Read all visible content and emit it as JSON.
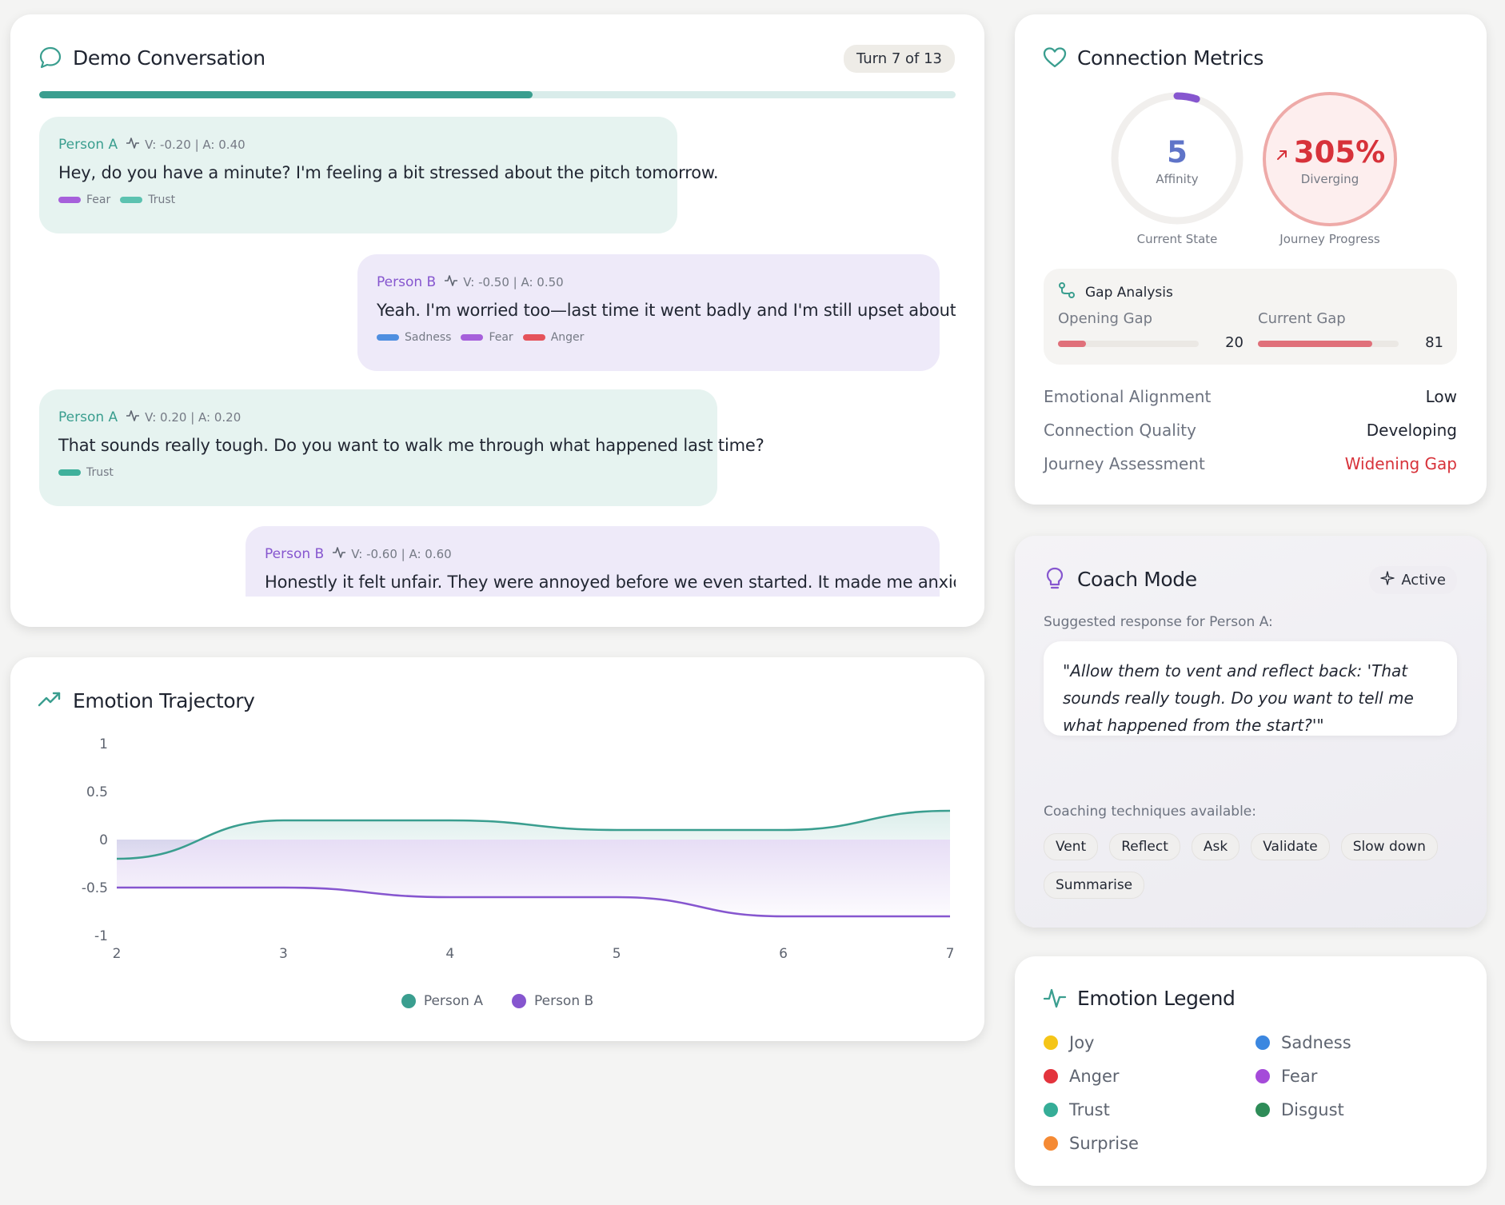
{
  "conversation": {
    "title": "Demo Conversation",
    "turn_label": "Turn 7 of 13",
    "progress": 0.538,
    "messages": [
      {
        "speaker": "Person A",
        "va": "V: -0.20 | A: 0.40",
        "text": "Hey, do you have a minute? I'm feeling a bit stressed about the pitch tomorrow.",
        "tags": [
          {
            "label": "Fear",
            "color": "#a660db"
          },
          {
            "label": "Trust",
            "color": "#5cc2b0"
          }
        ]
      },
      {
        "speaker": "Person B",
        "va": "V: -0.50 | A: 0.50",
        "text": "Yeah. I'm worried too—last time it went badly and I'm still upset about it.",
        "tags": [
          {
            "label": "Sadness",
            "color": "#4f8fe0"
          },
          {
            "label": "Fear",
            "color": "#a660db"
          },
          {
            "label": "Anger",
            "color": "#e5535b"
          }
        ]
      },
      {
        "speaker": "Person A",
        "va": "V: 0.20 | A: 0.20",
        "text": "That sounds really tough. Do you want to walk me through what happened last time?",
        "tags": [
          {
            "label": "Trust",
            "color": "#3fb09b"
          }
        ]
      },
      {
        "speaker": "Person B",
        "va": "V: -0.60 | A: 0.60",
        "text": "Honestly it felt unfair. They were annoyed before we even started. It made me anxious.",
        "tags": []
      }
    ]
  },
  "trajectory": {
    "title": "Emotion Trajectory",
    "legend": [
      "Person A",
      "Person B"
    ]
  },
  "chart_data": {
    "type": "line",
    "x": [
      2,
      3,
      4,
      5,
      6,
      7
    ],
    "series": [
      {
        "name": "Person A",
        "color": "#3a9e8f",
        "values": [
          -0.2,
          0.2,
          0.2,
          0.1,
          0.1,
          0.3
        ]
      },
      {
        "name": "Person B",
        "color": "#8656cf",
        "values": [
          -0.5,
          -0.5,
          -0.6,
          -0.6,
          -0.8,
          -0.8
        ]
      }
    ],
    "yticks": [
      "1",
      "0.5",
      "0",
      "-0.5",
      "-1"
    ],
    "xticks": [
      "2",
      "3",
      "4",
      "5",
      "6",
      "7"
    ],
    "ylim": [
      -1,
      1
    ],
    "xlim": [
      2,
      7
    ],
    "legend_position": "bottom-center"
  },
  "metrics": {
    "title": "Connection Metrics",
    "affinity_value": "5",
    "affinity_label": "Affinity",
    "affinity_caption": "Current State",
    "affinity_fraction": 0.05,
    "progress_value": "305%",
    "progress_label": "Diverging",
    "progress_caption": "Journey Progress",
    "gap_title": "Gap Analysis",
    "opening_gap_label": "Opening Gap",
    "opening_gap_value": "20",
    "opening_gap_fraction": 0.2,
    "current_gap_label": "Current Gap",
    "current_gap_value": "81",
    "current_gap_fraction": 0.81,
    "rows": [
      {
        "key": "Emotional Alignment",
        "value": "Low",
        "color": "#1f2430"
      },
      {
        "key": "Connection Quality",
        "value": "Developing",
        "color": "#1f2430"
      },
      {
        "key": "Journey Assessment",
        "value": "Widening Gap",
        "color": "#d7323a"
      }
    ]
  },
  "coach": {
    "title": "Coach Mode",
    "status": "Active",
    "suggested_label": "Suggested response for Person A:",
    "suggestion": "\"Allow them to vent and reflect back: 'That sounds really tough. Do you want to tell me what happened from the start?'\"",
    "techniques_label": "Coaching techniques available:",
    "techniques": [
      "Vent",
      "Reflect",
      "Ask",
      "Validate",
      "Slow down",
      "Summarise"
    ]
  },
  "emotion_legend": {
    "title": "Emotion Legend",
    "items": [
      {
        "label": "Joy",
        "color": "#f5c518"
      },
      {
        "label": "Sadness",
        "color": "#3b87e0"
      },
      {
        "label": "Anger",
        "color": "#e3343d"
      },
      {
        "label": "Fear",
        "color": "#a54bd9"
      },
      {
        "label": "Trust",
        "color": "#35ad97"
      },
      {
        "label": "Disgust",
        "color": "#2e8c58"
      },
      {
        "label": "Surprise",
        "color": "#f58a34"
      }
    ]
  },
  "colors": {
    "accent_teal": "#3a9e8f",
    "accent_purple": "#8656cf",
    "alert_red": "#d7323a"
  }
}
